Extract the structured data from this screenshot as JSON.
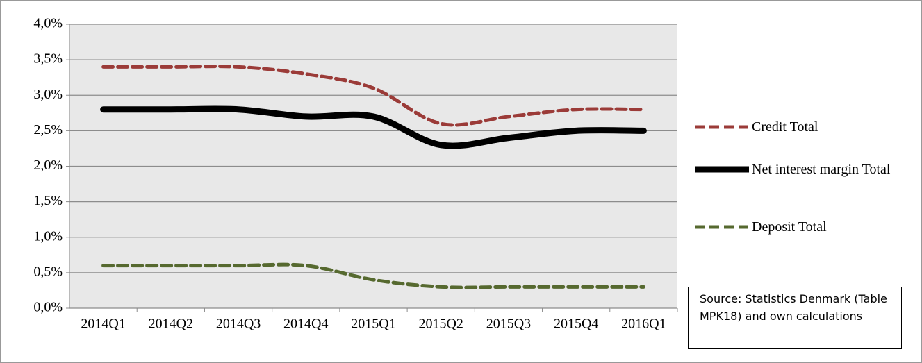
{
  "chart_data": {
    "type": "line",
    "categories": [
      "2014Q1",
      "2014Q2",
      "2014Q3",
      "2014Q4",
      "2015Q1",
      "2015Q2",
      "2015Q3",
      "2015Q4",
      "2016Q1"
    ],
    "series": [
      {
        "name": "Credit Total",
        "color": "#9b3b38",
        "dash": "dashed",
        "values": [
          3.4,
          3.4,
          3.4,
          3.3,
          3.1,
          2.6,
          2.7,
          2.8,
          2.8
        ]
      },
      {
        "name": "Net interest margin Total",
        "color": "#000000",
        "dash": "solid",
        "values": [
          2.8,
          2.8,
          2.8,
          2.7,
          2.7,
          2.3,
          2.4,
          2.5,
          2.5
        ]
      },
      {
        "name": "Deposit Total",
        "color": "#56692f",
        "dash": "dashed",
        "values": [
          0.6,
          0.6,
          0.6,
          0.6,
          0.4,
          0.3,
          0.3,
          0.3,
          0.3
        ]
      }
    ],
    "ylim": [
      0,
      4
    ],
    "yticks": [
      {
        "value": 0,
        "label": "0,0%"
      },
      {
        "value": 0.5,
        "label": "0,5%"
      },
      {
        "value": 1,
        "label": "1,0%"
      },
      {
        "value": 1.5,
        "label": "1,5%"
      },
      {
        "value": 2,
        "label": "2,0%"
      },
      {
        "value": 2.5,
        "label": "2,5%"
      },
      {
        "value": 3,
        "label": "3,0%"
      },
      {
        "value": 3.5,
        "label": "3,5%"
      },
      {
        "value": 4,
        "label": "4,0%"
      }
    ],
    "grid": true,
    "legend": "right",
    "annotation": "Source: Statistics Denmark (Table MPK18) and own calculations"
  }
}
